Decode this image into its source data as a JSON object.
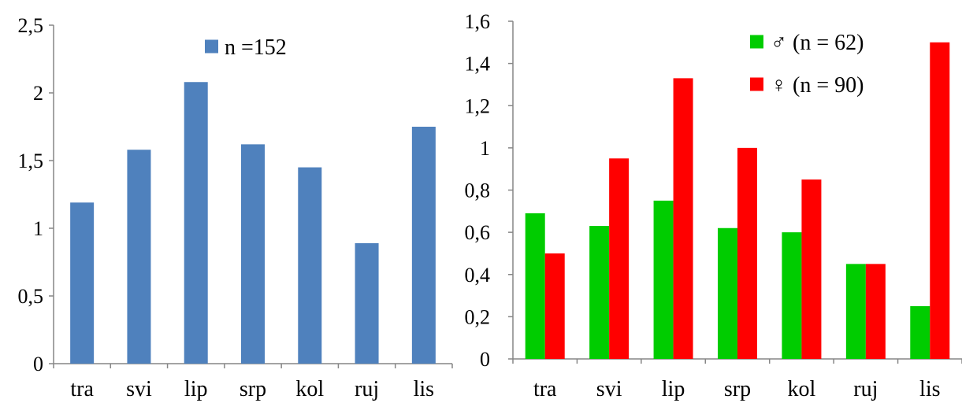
{
  "chart_data": [
    {
      "type": "bar",
      "categories": [
        "tra",
        "svi",
        "lip",
        "srp",
        "kol",
        "ruj",
        "lis"
      ],
      "series": [
        {
          "name": "n =152",
          "color": "#4F81BD",
          "values": [
            1.19,
            1.58,
            2.08,
            1.62,
            1.45,
            0.89,
            1.75
          ]
        }
      ],
      "ylim": [
        0,
        2.5
      ],
      "yticks": [
        {
          "value": 0,
          "label": "0"
        },
        {
          "value": 0.5,
          "label": "0,5"
        },
        {
          "value": 1,
          "label": "1"
        },
        {
          "value": 1.5,
          "label": "1,5"
        },
        {
          "value": 2,
          "label": "2"
        },
        {
          "value": 2.5,
          "label": "2,5"
        }
      ],
      "grid": false,
      "legend_position": "top-center"
    },
    {
      "type": "bar",
      "categories": [
        "tra",
        "svi",
        "lip",
        "srp",
        "kol",
        "ruj",
        "lis"
      ],
      "series": [
        {
          "name": "♂ (n = 62)",
          "color": "#00CC00",
          "values": [
            0.69,
            0.63,
            0.75,
            0.62,
            0.6,
            0.45,
            0.25
          ]
        },
        {
          "name": "♀ (n = 90)",
          "color": "#FF0000",
          "values": [
            0.5,
            0.95,
            1.33,
            1.0,
            0.85,
            0.45,
            1.5
          ]
        }
      ],
      "ylim": [
        0,
        1.6
      ],
      "yticks": [
        {
          "value": 0,
          "label": "0"
        },
        {
          "value": 0.2,
          "label": "0,2"
        },
        {
          "value": 0.4,
          "label": "0,4"
        },
        {
          "value": 0.6,
          "label": "0,6"
        },
        {
          "value": 0.8,
          "label": "0,8"
        },
        {
          "value": 1,
          "label": "1"
        },
        {
          "value": 1.2,
          "label": "1,2"
        },
        {
          "value": 1.4,
          "label": "1,4"
        },
        {
          "value": 1.6,
          "label": "1,6"
        }
      ],
      "grid": false,
      "legend_position": "top-right"
    }
  ]
}
